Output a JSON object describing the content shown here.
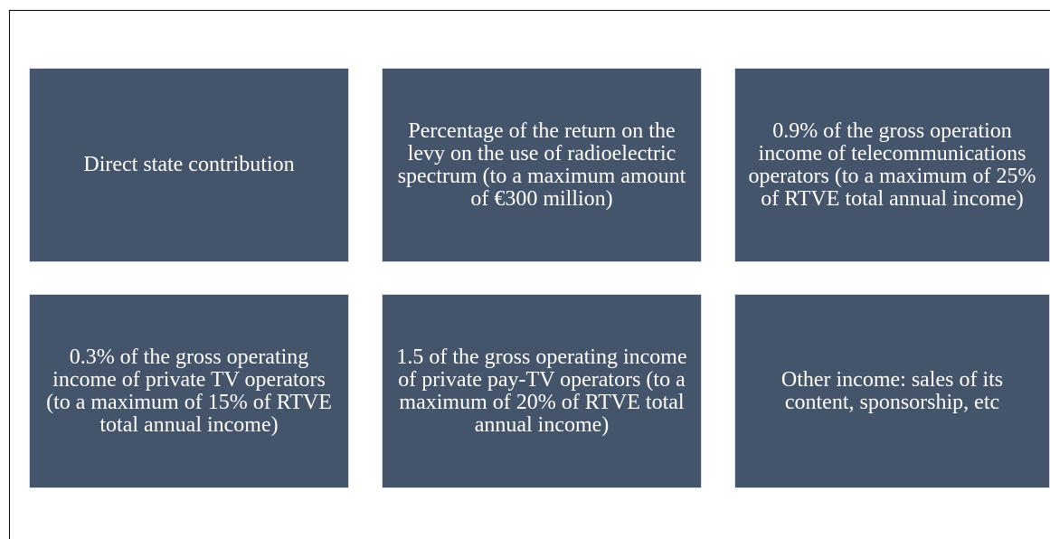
{
  "boxes": [
    "Direct state contribution",
    "Percentage of the return on the levy on the use of radioelectric spectrum (to a maximum amount of €300 million)",
    "0.9% of the gross operation income of telecommunications operators (to a maximum of 25% of RTVE total annual income)",
    "0.3% of the gross operating income of private TV operators (to a maximum of 15% of RTVE total annual income)",
    "1.5 of the gross operating income of private pay-TV operators (to a maximum of 20% of RTVE total annual income)",
    "Other income: sales of its content, sponsorship, etc"
  ]
}
